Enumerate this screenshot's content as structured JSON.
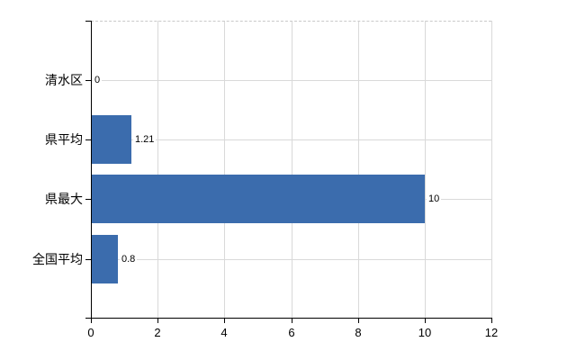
{
  "chart_data": {
    "type": "bar",
    "orientation": "horizontal",
    "title": "",
    "xlabel": "",
    "ylabel": "",
    "categories": [
      "清水区",
      "県平均",
      "県最大",
      "全国平均"
    ],
    "values": [
      0,
      1.21,
      10,
      0.8
    ],
    "data_labels": [
      "0",
      "1.21",
      "10",
      "0.8"
    ],
    "xlim": [
      0,
      12
    ],
    "x_ticks": [
      0,
      2,
      4,
      6,
      8,
      10,
      12
    ],
    "x_tick_labels": [
      "0",
      "2",
      "4",
      "6",
      "8",
      "10",
      "12"
    ],
    "grid": "on",
    "gridline_color": "#d9d9d9",
    "top_border_style": "dashed",
    "bar_color": "#3b6cad",
    "axis_color": "#000000",
    "text_color": "#000000",
    "background_color": "#ffffff",
    "legend": "none"
  }
}
